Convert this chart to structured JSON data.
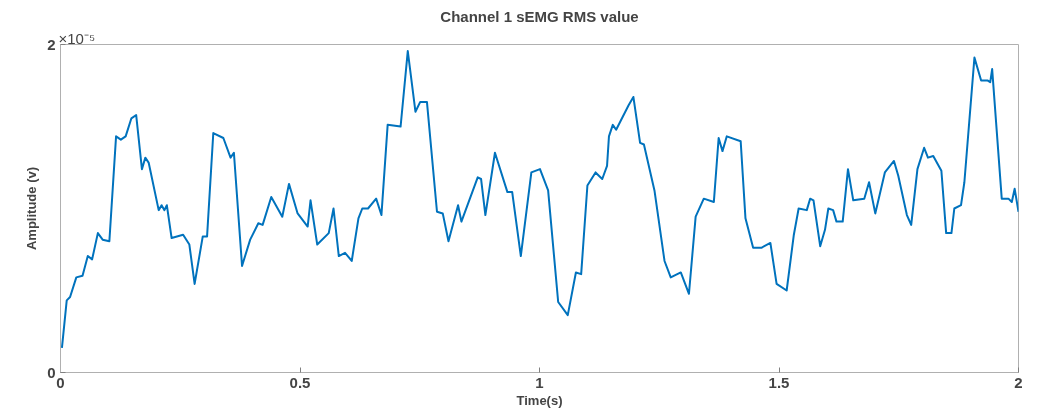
{
  "chart_data": {
    "type": "line",
    "title": "Channel 1 sEMG RMS value",
    "xlabel": "Time(s)",
    "ylabel": "Amplitude (v)",
    "annotations": [
      "×10⁻⁵"
    ],
    "xlim": [
      0,
      2
    ],
    "ylim": [
      0,
      2
    ],
    "xticks": [
      0,
      0.5,
      1,
      1.5,
      2
    ],
    "yticks": [
      0,
      2
    ],
    "grid": false,
    "marker": "none",
    "line_style": "solid",
    "series": [
      {
        "color": "#0072bd",
        "x": [
          0.003,
          0.013,
          0.02,
          0.033,
          0.046,
          0.057,
          0.066,
          0.078,
          0.088,
          0.102,
          0.116,
          0.126,
          0.136,
          0.148,
          0.158,
          0.17,
          0.177,
          0.184,
          0.205,
          0.211,
          0.217,
          0.222,
          0.232,
          0.256,
          0.269,
          0.28,
          0.297,
          0.306,
          0.319,
          0.34,
          0.355,
          0.362,
          0.379,
          0.396,
          0.413,
          0.422,
          0.44,
          0.463,
          0.477,
          0.495,
          0.516,
          0.522,
          0.536,
          0.56,
          0.57,
          0.581,
          0.594,
          0.608,
          0.622,
          0.63,
          0.642,
          0.659,
          0.67,
          0.683,
          0.71,
          0.725,
          0.741,
          0.751,
          0.765,
          0.786,
          0.798,
          0.81,
          0.83,
          0.837,
          0.871,
          0.878,
          0.887,
          0.907,
          0.933,
          0.943,
          0.961,
          0.983,
          1.001,
          1.018,
          1.039,
          1.059,
          1.076,
          1.087,
          1.1,
          1.117,
          1.131,
          1.141,
          1.145,
          1.153,
          1.16,
          1.186,
          1.196,
          1.21,
          1.218,
          1.24,
          1.261,
          1.274,
          1.295,
          1.312,
          1.326,
          1.343,
          1.364,
          1.374,
          1.382,
          1.391,
          1.42,
          1.43,
          1.446,
          1.463,
          1.482,
          1.495,
          1.516,
          1.531,
          1.541,
          1.558,
          1.565,
          1.572,
          1.586,
          1.596,
          1.603,
          1.613,
          1.62,
          1.633,
          1.644,
          1.655,
          1.678,
          1.688,
          1.701,
          1.721,
          1.74,
          1.749,
          1.767,
          1.776,
          1.789,
          1.803,
          1.811,
          1.822,
          1.839,
          1.849,
          1.86,
          1.866,
          1.88,
          1.887,
          1.908,
          1.922,
          1.936,
          1.941,
          1.945,
          1.965,
          1.979,
          1.986,
          1.992,
          2.0
        ],
        "values": [
          0.15,
          0.44,
          0.46,
          0.58,
          0.59,
          0.71,
          0.69,
          0.85,
          0.81,
          0.8,
          1.44,
          1.42,
          1.44,
          1.55,
          1.57,
          1.24,
          1.31,
          1.28,
          0.99,
          1.02,
          0.99,
          1.02,
          0.82,
          0.84,
          0.78,
          0.54,
          0.83,
          0.83,
          1.46,
          1.43,
          1.31,
          1.34,
          0.65,
          0.81,
          0.91,
          0.9,
          1.07,
          0.95,
          1.15,
          0.97,
          0.89,
          1.05,
          0.78,
          0.85,
          1.0,
          0.71,
          0.73,
          0.68,
          0.94,
          1.0,
          1.0,
          1.06,
          0.96,
          1.51,
          1.5,
          1.96,
          1.59,
          1.65,
          1.65,
          0.98,
          0.97,
          0.8,
          1.02,
          0.92,
          1.19,
          1.18,
          0.96,
          1.34,
          1.1,
          1.1,
          0.71,
          1.22,
          1.24,
          1.11,
          0.43,
          0.35,
          0.61,
          0.6,
          1.14,
          1.22,
          1.18,
          1.26,
          1.44,
          1.51,
          1.48,
          1.63,
          1.68,
          1.4,
          1.39,
          1.11,
          0.68,
          0.58,
          0.61,
          0.48,
          0.95,
          1.06,
          1.04,
          1.43,
          1.35,
          1.44,
          1.41,
          0.94,
          0.76,
          0.76,
          0.79,
          0.54,
          0.5,
          0.84,
          1.0,
          0.99,
          1.06,
          1.05,
          0.77,
          0.87,
          1.0,
          0.99,
          0.92,
          0.92,
          1.24,
          1.05,
          1.06,
          1.16,
          0.97,
          1.22,
          1.29,
          1.2,
          0.96,
          0.9,
          1.24,
          1.37,
          1.31,
          1.32,
          1.23,
          0.85,
          0.85,
          1.0,
          1.02,
          1.16,
          1.92,
          1.78,
          1.78,
          1.77,
          1.85,
          1.06,
          1.06,
          1.04,
          1.12,
          0.98
        ]
      }
    ]
  }
}
